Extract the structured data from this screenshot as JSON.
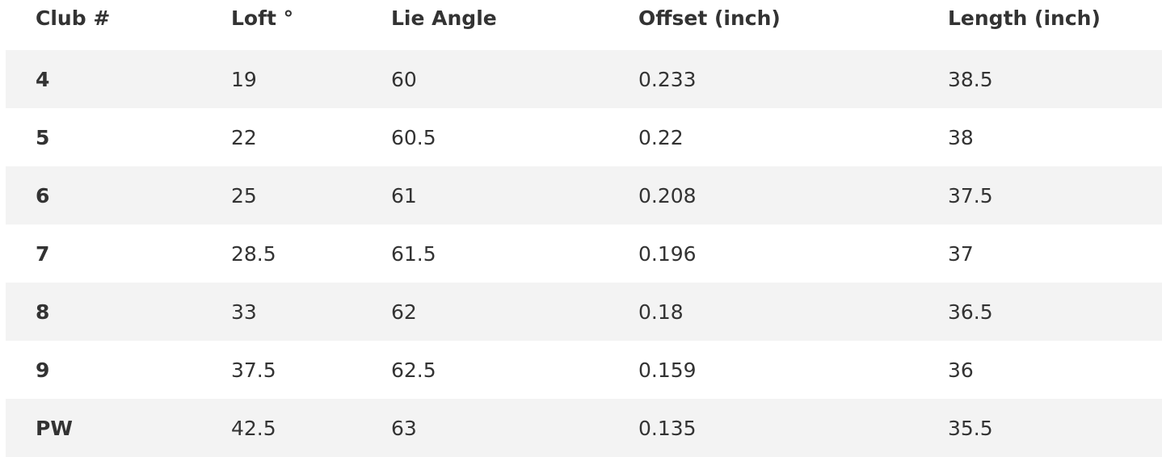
{
  "table": {
    "header": [
      "Club #",
      "Loft °",
      "Lie Angle",
      "Offset (inch)",
      "Length (inch)"
    ],
    "rows": [
      [
        "4",
        "19",
        "60",
        "0.233",
        "38.5"
      ],
      [
        "5",
        "22",
        "60.5",
        "0.22",
        "38"
      ],
      [
        "6",
        "25",
        "61",
        "0.208",
        "37.5"
      ],
      [
        "7",
        "28.5",
        "61.5",
        "0.196",
        "37"
      ],
      [
        "8",
        "33",
        "62",
        "0.18",
        "36.5"
      ],
      [
        "9",
        "37.5",
        "62.5",
        "0.159",
        "36"
      ],
      [
        "PW",
        "42.5",
        "63",
        "0.135",
        "35.5"
      ]
    ]
  }
}
